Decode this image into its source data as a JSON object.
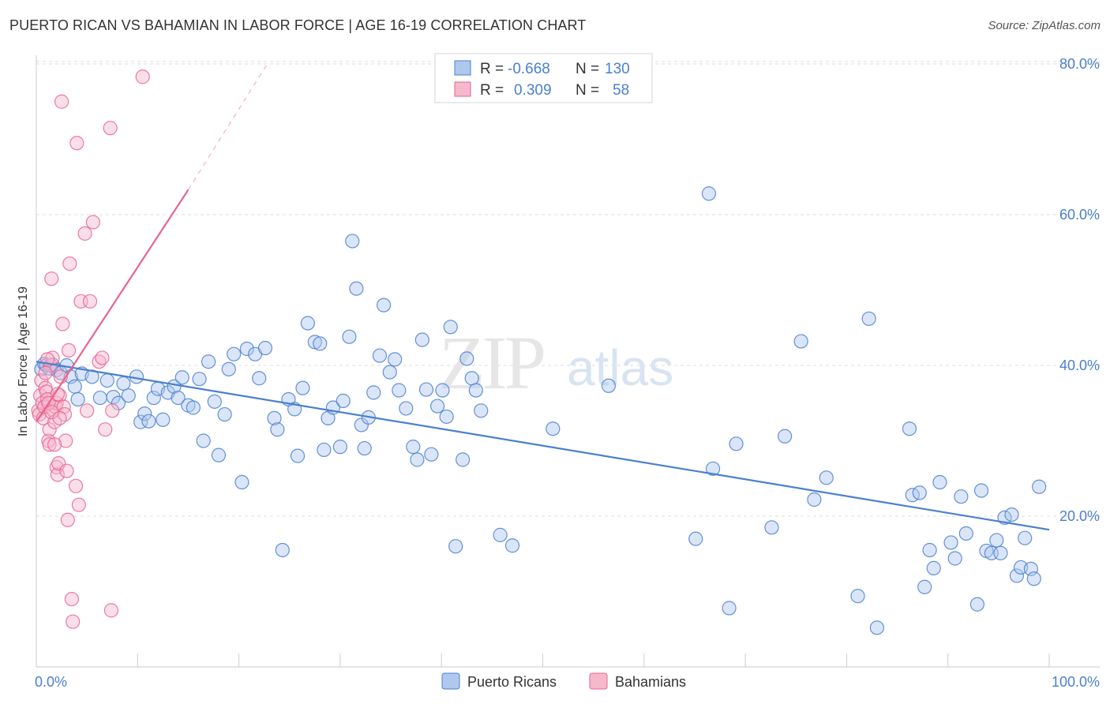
{
  "title": "PUERTO RICAN VS BAHAMIAN IN LABOR FORCE | AGE 16-19 CORRELATION CHART",
  "source": "Source: ZipAtlas.com",
  "colors": {
    "blue": "#4a7fd0",
    "blue_fill": "#aec8ee",
    "pink": "#e8648f",
    "pink_fill": "#f6b8cb",
    "grid": "#dddddd"
  },
  "legend": {
    "rows": [
      {
        "r_label": "R = ",
        "r_value": "-0.668",
        "n_label": "N = ",
        "n_value": "130",
        "series": "blue"
      },
      {
        "r_label": "R = ",
        "r_value": "0.309",
        "n_label": "N = ",
        "n_value": "58",
        "series": "pink"
      }
    ]
  },
  "watermark": {
    "zip": "ZIP",
    "atlas": "atlas"
  },
  "chart_data": {
    "type": "scatter",
    "title": "PUERTO RICAN VS BAHAMIAN IN LABOR FORCE | AGE 16-19 CORRELATION CHART",
    "xlabel": "",
    "ylabel": "In Labor Force | Age 16-19",
    "xlim": [
      0,
      100
    ],
    "ylim": [
      0,
      82
    ],
    "x_tick_labels": [
      "0.0%",
      "100.0%"
    ],
    "y_ticks": [
      20,
      40,
      60,
      80
    ],
    "y_tick_labels": [
      "20.0%",
      "40.0%",
      "60.0%",
      "80.0%"
    ],
    "legend_placement": "top-center",
    "series": [
      {
        "name": "Puerto Ricans",
        "color": "blue",
        "trend": {
          "x": [
            0,
            100
          ],
          "y": [
            40.5,
            18.2
          ],
          "style": "solid"
        },
        "points": [
          [
            0.5,
            39.5
          ],
          [
            0.8,
            40.2
          ],
          [
            1.0,
            40.0
          ],
          [
            1.3,
            39.6
          ],
          [
            1.6,
            40.1
          ],
          [
            2.0,
            39.4
          ],
          [
            2.4,
            39.0
          ],
          [
            3.0,
            40.0
          ],
          [
            3.4,
            38.5
          ],
          [
            3.8,
            37.2
          ],
          [
            4.1,
            35.5
          ],
          [
            4.5,
            38.9
          ],
          [
            5.5,
            38.5
          ],
          [
            6.3,
            35.7
          ],
          [
            7.0,
            38.0
          ],
          [
            7.6,
            35.8
          ],
          [
            8.1,
            35.0
          ],
          [
            8.6,
            37.6
          ],
          [
            9.1,
            36.0
          ],
          [
            9.9,
            38.5
          ],
          [
            10.3,
            32.5
          ],
          [
            10.7,
            33.6
          ],
          [
            11.1,
            32.6
          ],
          [
            11.6,
            35.7
          ],
          [
            12.0,
            36.9
          ],
          [
            12.5,
            32.8
          ],
          [
            13.0,
            36.4
          ],
          [
            13.6,
            37.2
          ],
          [
            14.0,
            35.7
          ],
          [
            14.4,
            38.4
          ],
          [
            15.0,
            34.7
          ],
          [
            15.5,
            34.4
          ],
          [
            16.1,
            38.2
          ],
          [
            16.5,
            30.0
          ],
          [
            17.0,
            40.5
          ],
          [
            17.6,
            35.2
          ],
          [
            18.0,
            28.1
          ],
          [
            18.6,
            33.5
          ],
          [
            19.0,
            39.5
          ],
          [
            19.5,
            41.5
          ],
          [
            20.3,
            24.5
          ],
          [
            20.8,
            42.2
          ],
          [
            21.6,
            41.5
          ],
          [
            22.0,
            38.3
          ],
          [
            22.6,
            42.3
          ],
          [
            23.5,
            33.0
          ],
          [
            23.8,
            31.5
          ],
          [
            24.3,
            15.5
          ],
          [
            24.9,
            35.5
          ],
          [
            25.5,
            34.2
          ],
          [
            25.8,
            28.0
          ],
          [
            26.3,
            37.0
          ],
          [
            26.8,
            45.6
          ],
          [
            27.5,
            43.1
          ],
          [
            28.0,
            42.9
          ],
          [
            28.4,
            28.8
          ],
          [
            28.8,
            33.0
          ],
          [
            29.3,
            34.4
          ],
          [
            30.0,
            29.2
          ],
          [
            30.3,
            35.3
          ],
          [
            30.9,
            43.8
          ],
          [
            31.2,
            56.5
          ],
          [
            31.6,
            50.2
          ],
          [
            32.1,
            32.1
          ],
          [
            32.4,
            29.0
          ],
          [
            32.8,
            33.1
          ],
          [
            33.3,
            36.4
          ],
          [
            33.9,
            41.3
          ],
          [
            34.3,
            48.0
          ],
          [
            34.9,
            39.1
          ],
          [
            35.4,
            40.8
          ],
          [
            35.8,
            36.7
          ],
          [
            36.5,
            34.3
          ],
          [
            37.2,
            29.2
          ],
          [
            37.6,
            27.5
          ],
          [
            38.1,
            43.4
          ],
          [
            38.5,
            36.8
          ],
          [
            39.0,
            28.2
          ],
          [
            39.6,
            34.6
          ],
          [
            40.1,
            36.7
          ],
          [
            40.5,
            33.2
          ],
          [
            40.9,
            45.1
          ],
          [
            41.4,
            16.0
          ],
          [
            42.1,
            27.5
          ],
          [
            42.5,
            40.9
          ],
          [
            43.0,
            38.3
          ],
          [
            43.4,
            36.7
          ],
          [
            43.9,
            34.0
          ],
          [
            45.8,
            17.5
          ],
          [
            47.0,
            16.1
          ],
          [
            51.0,
            31.6
          ],
          [
            56.5,
            37.3
          ],
          [
            65.1,
            17.0
          ],
          [
            66.4,
            62.8
          ],
          [
            66.8,
            26.3
          ],
          [
            68.4,
            7.8
          ],
          [
            69.1,
            29.6
          ],
          [
            72.6,
            18.5
          ],
          [
            73.9,
            30.6
          ],
          [
            75.5,
            43.2
          ],
          [
            76.8,
            22.2
          ],
          [
            78.0,
            25.1
          ],
          [
            81.1,
            9.4
          ],
          [
            82.2,
            46.2
          ],
          [
            83.0,
            5.2
          ],
          [
            86.2,
            31.6
          ],
          [
            86.5,
            22.8
          ],
          [
            87.2,
            23.1
          ],
          [
            87.7,
            10.6
          ],
          [
            88.2,
            15.5
          ],
          [
            88.6,
            13.1
          ],
          [
            89.2,
            24.5
          ],
          [
            90.3,
            16.5
          ],
          [
            90.7,
            14.4
          ],
          [
            91.3,
            22.6
          ],
          [
            91.8,
            17.7
          ],
          [
            92.9,
            8.3
          ],
          [
            93.3,
            23.4
          ],
          [
            93.8,
            15.4
          ],
          [
            94.3,
            15.1
          ],
          [
            94.8,
            16.8
          ],
          [
            95.2,
            15.1
          ],
          [
            95.6,
            19.8
          ],
          [
            96.3,
            20.2
          ],
          [
            96.8,
            12.1
          ],
          [
            97.2,
            13.2
          ],
          [
            97.6,
            17.1
          ],
          [
            98.2,
            13.0
          ],
          [
            98.5,
            11.7
          ],
          [
            99.0,
            23.9
          ]
        ]
      },
      {
        "name": "Bahamians",
        "color": "pink",
        "trend": {
          "x": [
            0,
            15
          ],
          "y": [
            32.5,
            63.3
          ],
          "style": "solid",
          "extended_to": [
            22.8,
            80.0
          ],
          "extension_style": "dashed"
        },
        "points": [
          [
            0.2,
            34.0
          ],
          [
            0.3,
            33.5
          ],
          [
            0.4,
            36.0
          ],
          [
            0.5,
            38.0
          ],
          [
            0.6,
            35.0
          ],
          [
            0.7,
            33.0
          ],
          [
            0.8,
            34.5
          ],
          [
            0.9,
            37.0
          ],
          [
            1.0,
            36.5
          ],
          [
            1.1,
            35.5
          ],
          [
            1.2,
            30.0
          ],
          [
            1.3,
            31.5
          ],
          [
            1.3,
            29.5
          ],
          [
            1.4,
            40.0
          ],
          [
            1.5,
            51.5
          ],
          [
            1.6,
            41.0
          ],
          [
            1.7,
            34.0
          ],
          [
            1.8,
            32.5
          ],
          [
            1.9,
            34.5
          ],
          [
            2.0,
            35.0
          ],
          [
            2.0,
            26.5
          ],
          [
            2.1,
            25.5
          ],
          [
            2.2,
            27.0
          ],
          [
            2.3,
            36.0
          ],
          [
            2.4,
            38.5
          ],
          [
            2.5,
            75.0
          ],
          [
            2.6,
            45.5
          ],
          [
            2.7,
            34.5
          ],
          [
            2.8,
            33.5
          ],
          [
            2.9,
            30.0
          ],
          [
            3.0,
            26.0
          ],
          [
            3.1,
            19.5
          ],
          [
            3.2,
            42.0
          ],
          [
            3.3,
            53.5
          ],
          [
            3.5,
            9.0
          ],
          [
            3.6,
            6.0
          ],
          [
            3.9,
            24.0
          ],
          [
            4.0,
            69.5
          ],
          [
            4.2,
            21.5
          ],
          [
            4.4,
            48.5
          ],
          [
            4.8,
            57.5
          ],
          [
            5.0,
            34.0
          ],
          [
            5.3,
            48.5
          ],
          [
            5.6,
            59.0
          ],
          [
            6.2,
            40.5
          ],
          [
            6.5,
            41.0
          ],
          [
            6.8,
            31.5
          ],
          [
            7.3,
            71.5
          ],
          [
            7.5,
            34.0
          ],
          [
            7.4,
            7.5
          ],
          [
            0.9,
            39.0
          ],
          [
            1.2,
            35.0
          ],
          [
            1.5,
            33.8
          ],
          [
            1.8,
            29.5
          ],
          [
            2.1,
            36.2
          ],
          [
            2.3,
            33.0
          ],
          [
            10.5,
            78.3
          ],
          [
            1.1,
            40.8
          ]
        ]
      }
    ]
  }
}
